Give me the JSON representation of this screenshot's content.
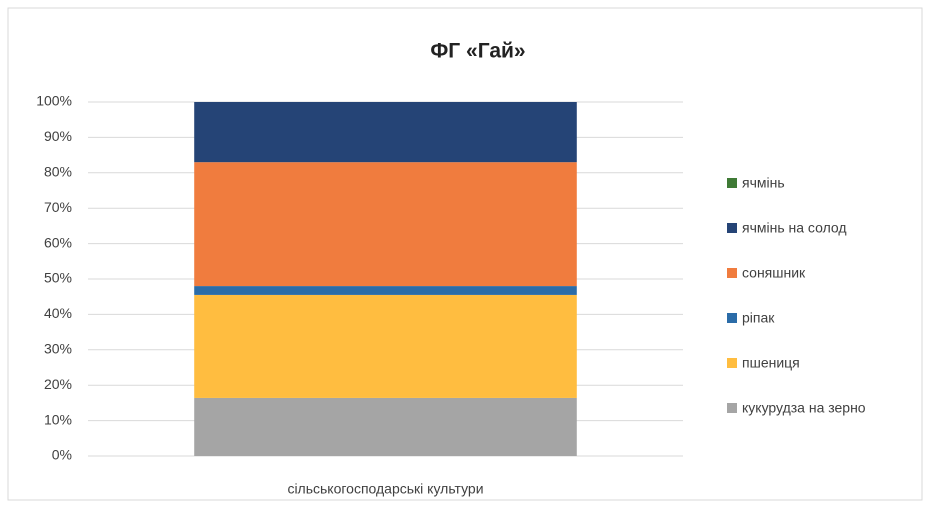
{
  "chart_data": {
    "type": "stacked_bar",
    "title": "ФГ «Гай»",
    "categories": [
      "сільськогосподарські культури"
    ],
    "series": [
      {
        "name": "кукурудза на зерно",
        "color": "#a5a5a5",
        "values": [
          16.4
        ]
      },
      {
        "name": "пшениця",
        "color": "#ffbd40",
        "values": [
          29.1
        ]
      },
      {
        "name": "ріпак",
        "color": "#2b6ca8",
        "values": [
          2.5
        ]
      },
      {
        "name": "соняшник",
        "color": "#f07c3e",
        "values": [
          35.0
        ]
      },
      {
        "name": "ячмінь на солод",
        "color": "#254476",
        "values": [
          17.0
        ]
      },
      {
        "name": "ячмінь",
        "color": "#3f7a35",
        "values": [
          0
        ]
      }
    ],
    "ylim": [
      0,
      100
    ],
    "yticks": [
      {
        "value": 0,
        "label": "0%"
      },
      {
        "value": 10,
        "label": "10%"
      },
      {
        "value": 20,
        "label": "20%"
      },
      {
        "value": 30,
        "label": "30%"
      },
      {
        "value": 40,
        "label": "40%"
      },
      {
        "value": 50,
        "label": "50%"
      },
      {
        "value": 60,
        "label": "60%"
      },
      {
        "value": 70,
        "label": "70%"
      },
      {
        "value": 80,
        "label": "80%"
      },
      {
        "value": 90,
        "label": "90%"
      },
      {
        "value": 100,
        "label": "100%"
      }
    ],
    "grid": true,
    "legend": "right"
  }
}
